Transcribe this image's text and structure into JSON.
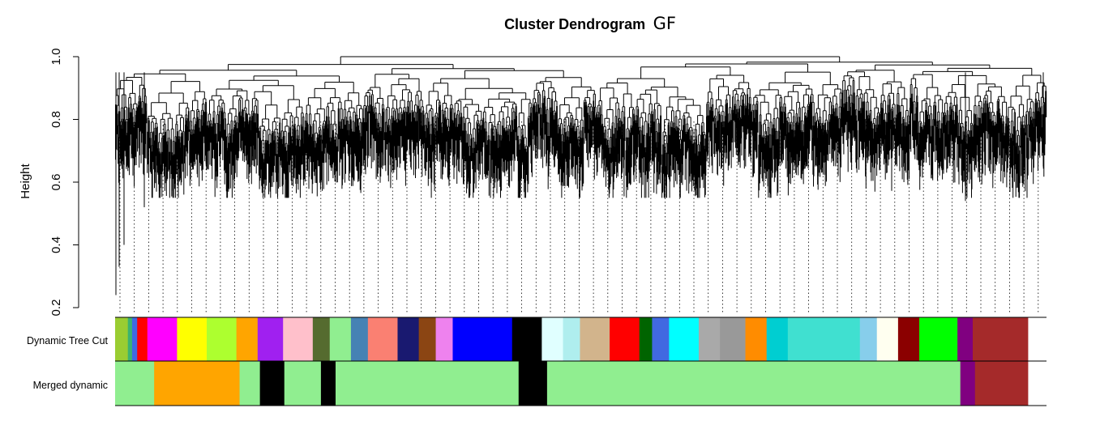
{
  "chart_data": {
    "type": "dendrogram",
    "title": "Cluster Dendrogram",
    "title_suffix": "GF",
    "ylabel": "Height",
    "ylim": [
      0.2,
      1.0
    ],
    "yticks": [
      "0.2",
      "0.4",
      "0.6",
      "0.8",
      "1.0"
    ],
    "yticks_values": [
      0.2,
      0.4,
      0.6,
      0.8,
      1.0
    ],
    "dendrogram_color": "#000000",
    "guide_line_style": "dotted",
    "merge_height_range": [
      0.6,
      1.0
    ],
    "color_rows": [
      {
        "label": "Dynamic Tree Cut",
        "modules": [
          "#9acd32",
          "#3cb371",
          "#4169e1",
          "#ff0000",
          "#ff00ff",
          "#ffff00",
          "#adff2f",
          "#ffa500",
          "#a020f0",
          "#ffc0cb",
          "#556b2f",
          "#90ee90",
          "#4682b4",
          "#fa8072",
          "#191970",
          "#8b4513",
          "#ee82ee",
          "#0000ff",
          "#000000",
          "#e0ffff",
          "#afeeee",
          "#d2b48c",
          "#ff0000",
          "#006400",
          "#4169e1",
          "#00ffff",
          "#a9a9a9",
          "#999999",
          "#ff8c00",
          "#00ced1",
          "#40e0d0",
          "#87ceeb",
          "#fffff0",
          "#8b0000",
          "#00ff00",
          "#800080",
          "#a52a2a"
        ],
        "module_sizes": [
          1.5,
          0.5,
          0.6,
          1.2,
          3.5,
          3.5,
          3.5,
          2.5,
          3,
          3.5,
          2,
          2.5,
          2,
          3.5,
          2.5,
          2,
          2,
          7,
          3.5,
          2.5,
          2,
          3.5,
          3.5,
          1.5,
          2,
          3.5,
          2.5,
          3,
          2.5,
          2.5,
          8.5,
          2,
          2.5,
          2.5,
          4.5,
          1.8,
          6.5
        ]
      },
      {
        "label": "Merged dynamic",
        "modules": [
          "#90ee90",
          "#ffa500",
          "#90ee90",
          "#000000",
          "#90ee90",
          "#000000",
          "#90ee90",
          "#000000",
          "#90ee90",
          "#800080",
          "#a52a2a"
        ],
        "module_sizes": [
          4.8,
          10.5,
          2.5,
          3,
          4.5,
          1.8,
          22.5,
          3.5,
          50.8,
          1.8,
          6.5
        ]
      }
    ]
  }
}
